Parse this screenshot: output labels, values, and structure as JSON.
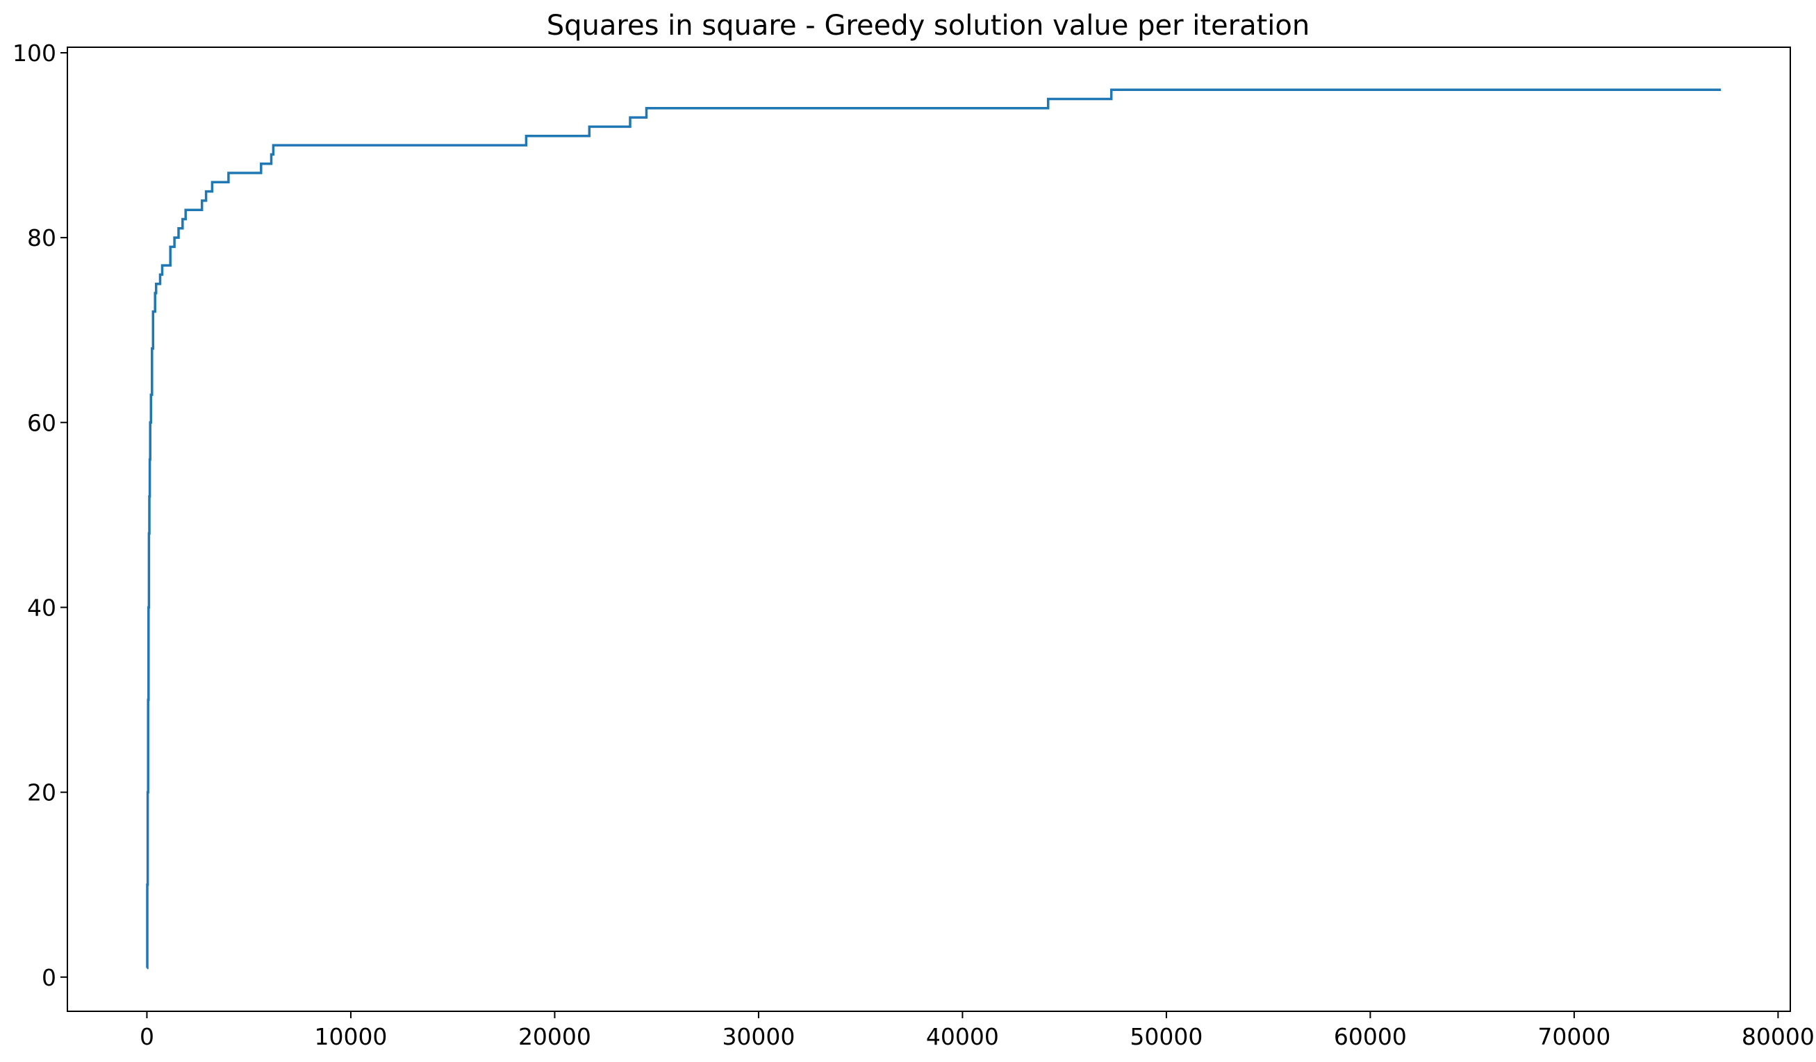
{
  "chart_data": {
    "type": "line",
    "title": "Squares in square - Greedy solution value per iteration",
    "xlabel": "",
    "ylabel": "",
    "xlim": [
      -3900,
      80600
    ],
    "ylim": [
      -3.7,
      100.6
    ],
    "grid": false,
    "x_ticks": [
      0,
      10000,
      20000,
      30000,
      40000,
      50000,
      60000,
      70000,
      80000
    ],
    "x_tick_labels": [
      "0",
      "10000",
      "20000",
      "30000",
      "40000",
      "50000",
      "60000",
      "70000",
      "80000"
    ],
    "y_ticks": [
      0,
      20,
      40,
      60,
      80,
      100
    ],
    "y_tick_labels": [
      "0",
      "20",
      "40",
      "60",
      "80",
      "100"
    ],
    "series": [
      {
        "color": "#1f77b4",
        "step": true,
        "points": [
          [
            0,
            1
          ],
          [
            20,
            10
          ],
          [
            40,
            20
          ],
          [
            60,
            30
          ],
          [
            80,
            40
          ],
          [
            100,
            48
          ],
          [
            120,
            52
          ],
          [
            140,
            56
          ],
          [
            160,
            60
          ],
          [
            200,
            63
          ],
          [
            250,
            68
          ],
          [
            300,
            72
          ],
          [
            400,
            74
          ],
          [
            450,
            75
          ],
          [
            650,
            76
          ],
          [
            750,
            77
          ],
          [
            1150,
            79
          ],
          [
            1350,
            80
          ],
          [
            1550,
            81
          ],
          [
            1750,
            82
          ],
          [
            1900,
            83
          ],
          [
            2700,
            84
          ],
          [
            2900,
            85
          ],
          [
            3200,
            86
          ],
          [
            4000,
            87
          ],
          [
            5600,
            88
          ],
          [
            6100,
            89
          ],
          [
            6200,
            90
          ],
          [
            18600,
            91
          ],
          [
            21700,
            92
          ],
          [
            23700,
            93
          ],
          [
            24500,
            94
          ],
          [
            44200,
            95
          ],
          [
            47300,
            96
          ],
          [
            77200,
            96
          ]
        ]
      }
    ]
  }
}
